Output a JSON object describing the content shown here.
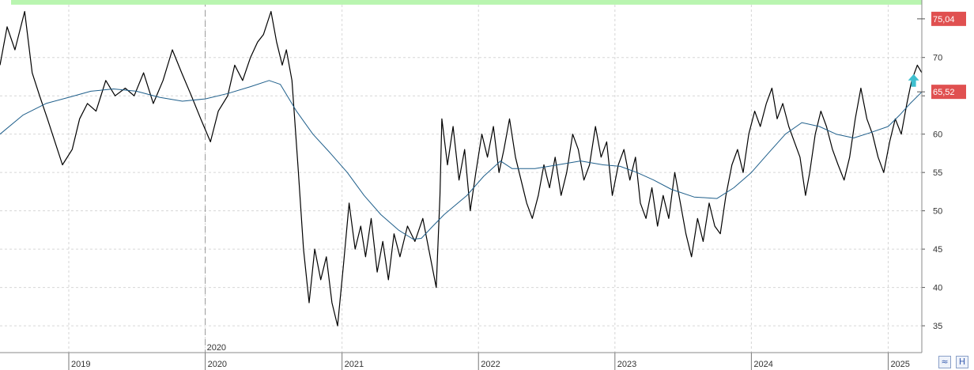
{
  "chart_data": {
    "type": "line",
    "title": "",
    "xlabel": "",
    "ylabel": "",
    "ylim": [
      31.5,
      77.5
    ],
    "xlim": [
      "2018-07-01",
      "2025-04-01"
    ],
    "grid": true,
    "x_tick_labels": [
      {
        "label": "2019",
        "date": "2019-01-01"
      },
      {
        "label": "2020",
        "date": "2020-01-01"
      },
      {
        "label": "2021",
        "date": "2021-01-01"
      },
      {
        "label": "2022",
        "date": "2022-01-01"
      },
      {
        "label": "2023",
        "date": "2023-01-01"
      },
      {
        "label": "2024",
        "date": "2024-01-01"
      },
      {
        "label": "2025",
        "date": "2025-01-01"
      }
    ],
    "session_break_label": {
      "label": "2020",
      "date": "2020-01-01"
    },
    "y_ticks": [
      35,
      40,
      45,
      50,
      55,
      60,
      65,
      70
    ],
    "series": [
      {
        "role": "price",
        "color": "#000000",
        "points": [
          [
            "2018-07-01",
            69
          ],
          [
            "2018-07-20",
            74
          ],
          [
            "2018-08-10",
            71
          ],
          [
            "2018-09-05",
            76
          ],
          [
            "2018-09-25",
            68
          ],
          [
            "2018-10-15",
            65
          ],
          [
            "2018-11-05",
            62
          ],
          [
            "2018-11-25",
            59
          ],
          [
            "2018-12-15",
            56
          ],
          [
            "2019-01-10",
            58
          ],
          [
            "2019-01-30",
            62
          ],
          [
            "2019-02-20",
            64
          ],
          [
            "2019-03-15",
            63
          ],
          [
            "2019-04-10",
            67
          ],
          [
            "2019-05-05",
            65
          ],
          [
            "2019-06-01",
            66
          ],
          [
            "2019-06-25",
            65
          ],
          [
            "2019-07-20",
            68
          ],
          [
            "2019-08-15",
            64
          ],
          [
            "2019-09-10",
            67
          ],
          [
            "2019-10-05",
            71
          ],
          [
            "2019-10-30",
            68
          ],
          [
            "2019-11-25",
            65
          ],
          [
            "2019-12-20",
            62
          ],
          [
            "2020-01-15",
            59
          ],
          [
            "2020-02-05",
            63
          ],
          [
            "2020-03-01",
            65
          ],
          [
            "2020-03-20",
            69
          ],
          [
            "2020-04-10",
            67
          ],
          [
            "2020-05-01",
            70
          ],
          [
            "2020-05-20",
            72
          ],
          [
            "2020-06-05",
            73
          ],
          [
            "2020-06-25",
            76
          ],
          [
            "2020-07-10",
            72
          ],
          [
            "2020-07-25",
            69
          ],
          [
            "2020-08-05",
            71
          ],
          [
            "2020-08-20",
            67
          ],
          [
            "2020-09-05",
            56
          ],
          [
            "2020-09-20",
            45
          ],
          [
            "2020-10-05",
            38
          ],
          [
            "2020-10-20",
            45
          ],
          [
            "2020-11-05",
            41
          ],
          [
            "2020-11-20",
            44
          ],
          [
            "2020-12-05",
            38
          ],
          [
            "2020-12-20",
            35
          ],
          [
            "2021-01-05",
            43
          ],
          [
            "2021-01-20",
            51
          ],
          [
            "2021-02-05",
            45
          ],
          [
            "2021-02-20",
            48
          ],
          [
            "2021-03-05",
            44
          ],
          [
            "2021-03-20",
            49
          ],
          [
            "2021-04-05",
            42
          ],
          [
            "2021-04-20",
            46
          ],
          [
            "2021-05-05",
            41
          ],
          [
            "2021-05-20",
            47
          ],
          [
            "2021-06-05",
            44
          ],
          [
            "2021-06-25",
            48
          ],
          [
            "2021-07-15",
            46
          ],
          [
            "2021-08-05",
            49
          ],
          [
            "2021-08-25",
            44
          ],
          [
            "2021-09-10",
            40
          ],
          [
            "2021-09-20",
            52
          ],
          [
            "2021-09-25",
            62
          ],
          [
            "2021-10-10",
            56
          ],
          [
            "2021-10-25",
            61
          ],
          [
            "2021-11-10",
            54
          ],
          [
            "2021-11-25",
            58
          ],
          [
            "2021-12-10",
            50
          ],
          [
            "2021-12-25",
            55
          ],
          [
            "2022-01-10",
            60
          ],
          [
            "2022-01-25",
            57
          ],
          [
            "2022-02-10",
            61
          ],
          [
            "2022-02-25",
            55
          ],
          [
            "2022-03-10",
            58
          ],
          [
            "2022-03-25",
            62
          ],
          [
            "2022-04-10",
            57
          ],
          [
            "2022-04-25",
            54
          ],
          [
            "2022-05-10",
            51
          ],
          [
            "2022-05-25",
            49
          ],
          [
            "2022-06-10",
            52
          ],
          [
            "2022-06-25",
            56
          ],
          [
            "2022-07-10",
            53
          ],
          [
            "2022-07-25",
            57
          ],
          [
            "2022-08-10",
            52
          ],
          [
            "2022-08-25",
            55
          ],
          [
            "2022-09-10",
            60
          ],
          [
            "2022-09-25",
            58
          ],
          [
            "2022-10-10",
            54
          ],
          [
            "2022-10-25",
            56
          ],
          [
            "2022-11-10",
            61
          ],
          [
            "2022-11-25",
            57
          ],
          [
            "2022-12-10",
            59
          ],
          [
            "2022-12-25",
            52
          ],
          [
            "2023-01-10",
            56
          ],
          [
            "2023-01-25",
            58
          ],
          [
            "2023-02-10",
            54
          ],
          [
            "2023-02-25",
            57
          ],
          [
            "2023-03-10",
            51
          ],
          [
            "2023-03-25",
            49
          ],
          [
            "2023-04-10",
            53
          ],
          [
            "2023-04-25",
            48
          ],
          [
            "2023-05-10",
            52
          ],
          [
            "2023-05-25",
            49
          ],
          [
            "2023-06-10",
            55
          ],
          [
            "2023-06-25",
            51
          ],
          [
            "2023-07-10",
            47
          ],
          [
            "2023-07-25",
            44
          ],
          [
            "2023-08-10",
            49
          ],
          [
            "2023-08-25",
            46
          ],
          [
            "2023-09-10",
            51
          ],
          [
            "2023-09-25",
            48
          ],
          [
            "2023-10-10",
            47
          ],
          [
            "2023-10-25",
            52
          ],
          [
            "2023-11-10",
            56
          ],
          [
            "2023-11-25",
            58
          ],
          [
            "2023-12-10",
            55
          ],
          [
            "2023-12-25",
            60
          ],
          [
            "2024-01-10",
            63
          ],
          [
            "2024-01-25",
            61
          ],
          [
            "2024-02-10",
            64
          ],
          [
            "2024-02-25",
            66
          ],
          [
            "2024-03-10",
            62
          ],
          [
            "2024-03-25",
            64
          ],
          [
            "2024-04-10",
            61
          ],
          [
            "2024-04-25",
            59
          ],
          [
            "2024-05-10",
            57
          ],
          [
            "2024-05-25",
            52
          ],
          [
            "2024-06-05",
            55
          ],
          [
            "2024-06-20",
            60
          ],
          [
            "2024-07-05",
            63
          ],
          [
            "2024-07-20",
            61
          ],
          [
            "2024-08-05",
            58
          ],
          [
            "2024-08-20",
            56
          ],
          [
            "2024-09-05",
            54
          ],
          [
            "2024-09-20",
            57
          ],
          [
            "2024-10-05",
            62
          ],
          [
            "2024-10-20",
            66
          ],
          [
            "2024-11-05",
            62
          ],
          [
            "2024-11-20",
            60
          ],
          [
            "2024-12-05",
            57
          ],
          [
            "2024-12-20",
            55
          ],
          [
            "2025-01-05",
            59
          ],
          [
            "2025-01-20",
            62
          ],
          [
            "2025-02-05",
            60
          ],
          [
            "2025-02-20",
            64
          ],
          [
            "2025-03-05",
            67
          ],
          [
            "2025-03-20",
            69
          ],
          [
            "2025-04-01",
            68
          ]
        ]
      },
      {
        "role": "moving-average",
        "color": "#1f5f8b",
        "points": [
          [
            "2018-07-01",
            60
          ],
          [
            "2018-09-01",
            62.5
          ],
          [
            "2018-11-01",
            64
          ],
          [
            "2019-01-01",
            64.8
          ],
          [
            "2019-03-01",
            65.6
          ],
          [
            "2019-05-01",
            65.9
          ],
          [
            "2019-07-01",
            65.6
          ],
          [
            "2019-09-01",
            64.8
          ],
          [
            "2019-11-01",
            64.3
          ],
          [
            "2020-01-01",
            64.6
          ],
          [
            "2020-03-01",
            65.3
          ],
          [
            "2020-05-01",
            66.2
          ],
          [
            "2020-06-20",
            67
          ],
          [
            "2020-07-20",
            66.5
          ],
          [
            "2020-09-01",
            63
          ],
          [
            "2020-10-15",
            60
          ],
          [
            "2020-12-01",
            57.5
          ],
          [
            "2021-01-15",
            55
          ],
          [
            "2021-03-01",
            52
          ],
          [
            "2021-04-15",
            49.5
          ],
          [
            "2021-06-01",
            47.5
          ],
          [
            "2021-07-10",
            46.3
          ],
          [
            "2021-08-01",
            46.4
          ],
          [
            "2021-09-01",
            48
          ],
          [
            "2021-10-01",
            49.5
          ],
          [
            "2021-12-01",
            52
          ],
          [
            "2022-01-15",
            54.5
          ],
          [
            "2022-03-01",
            56.5
          ],
          [
            "2022-04-01",
            55.5
          ],
          [
            "2022-06-01",
            55.5
          ],
          [
            "2022-08-01",
            56
          ],
          [
            "2022-10-01",
            56.5
          ],
          [
            "2022-12-01",
            56
          ],
          [
            "2023-01-15",
            55.8
          ],
          [
            "2023-03-01",
            55
          ],
          [
            "2023-04-15",
            54
          ],
          [
            "2023-06-01",
            52.8
          ],
          [
            "2023-08-01",
            51.8
          ],
          [
            "2023-10-01",
            51.6
          ],
          [
            "2023-11-15",
            53
          ],
          [
            "2024-01-01",
            55
          ],
          [
            "2024-02-15",
            57.5
          ],
          [
            "2024-04-01",
            60
          ],
          [
            "2024-05-15",
            61.5
          ],
          [
            "2024-07-01",
            61
          ],
          [
            "2024-08-15",
            60
          ],
          [
            "2024-10-01",
            59.5
          ],
          [
            "2024-11-15",
            60.2
          ],
          [
            "2025-01-01",
            61
          ],
          [
            "2025-02-01",
            62.5
          ],
          [
            "2025-03-01",
            64
          ],
          [
            "2025-04-01",
            65.5
          ]
        ]
      }
    ],
    "reference_line": {
      "value": 77.2,
      "color": "#b9f5b0"
    },
    "price_labels": [
      {
        "text": "75,04",
        "value": 75.04,
        "color": "#e05050"
      },
      {
        "text": "65,52",
        "value": 65.52,
        "color": "#e05050"
      }
    ],
    "signal_arrow": {
      "date": "2025-03-10",
      "value": 67,
      "direction": "up",
      "color": "#3fbfcf"
    }
  },
  "corner_icons": [
    {
      "name": "double-chevron-icon",
      "glyph": "≈"
    },
    {
      "name": "h-scale-icon",
      "glyph": "H"
    }
  ]
}
